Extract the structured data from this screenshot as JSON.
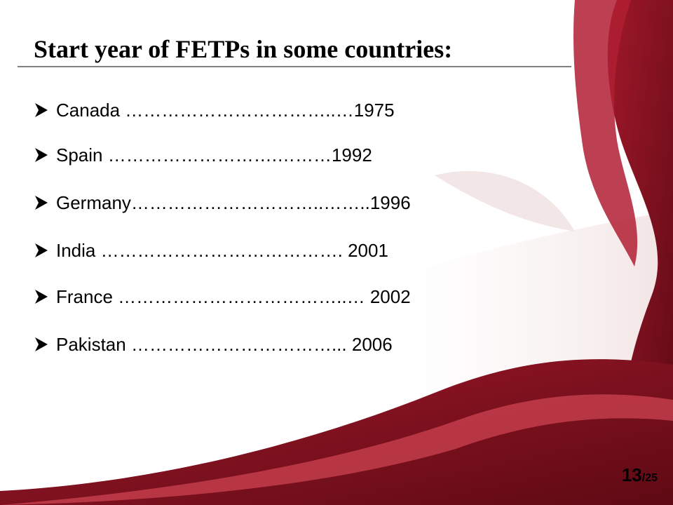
{
  "header": {
    "title": "Start year of FETPs in some countries:"
  },
  "items": [
    {
      "country": "Canada",
      "leader": " ……………………………..…",
      "year": 1975
    },
    {
      "country": "Spain",
      "leader": " ……………………….………",
      "year": 1992
    },
    {
      "country": "Germany",
      "leader": "…………………………..……..",
      "year": 1996
    },
    {
      "country": "India",
      "leader": " …………………………………. ",
      "year": 2001
    },
    {
      "country": "France",
      "leader": " ………………………………..… ",
      "year": 2002
    },
    {
      "country": "Pakistan",
      "leader": " ……………………………... ",
      "year": 2006
    }
  ],
  "footer": {
    "page": "13",
    "total": "/25"
  }
}
